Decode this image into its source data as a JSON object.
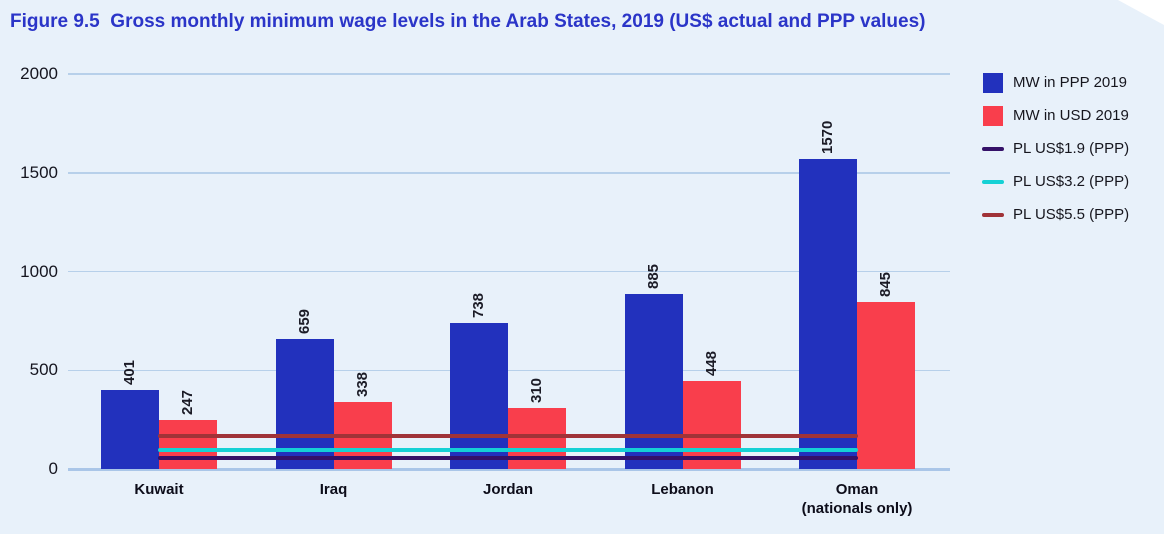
{
  "figure": {
    "title": "Figure 9.5  Gross monthly minimum wage levels in the Arab States, 2019 (US$ actual and PPP values)"
  },
  "colors": {
    "panel_background": "#e8f1fa",
    "title_text": "#2b35c8",
    "gridline": "#b7d0ea",
    "axis_line": "#aac6e8"
  },
  "chart_data": {
    "type": "bar",
    "title": "Gross monthly minimum wage levels in the Arab States, 2019 (US$ actual and PPP values)",
    "categories": [
      "Kuwait",
      "Iraq",
      "Jordan",
      "Lebanon",
      "Oman\n(nationals only)"
    ],
    "series": [
      {
        "name": "MW in PPP 2019",
        "color": "#2231bd",
        "values": [
          401,
          659,
          738,
          885,
          1570
        ]
      },
      {
        "name": "MW in USD 2019",
        "color": "#f93e4c",
        "values": [
          247,
          338,
          310,
          448,
          845
        ]
      }
    ],
    "lines": [
      {
        "name": "PL US$1.9 (PPP)",
        "color": "#351168",
        "value": 58
      },
      {
        "name": "PL US$3.2 (PPP)",
        "color": "#15d1d5",
        "value": 97
      },
      {
        "name": "PL US$5.5 (PPP)",
        "color": "#a03338",
        "value": 167
      }
    ],
    "yticks": [
      0,
      500,
      1000,
      1500,
      2000
    ],
    "ylim": [
      0,
      2000
    ],
    "xlabel": "",
    "ylabel": "",
    "grid": true,
    "legend_position": "top-right",
    "bar_value_labels_rotated": true
  }
}
